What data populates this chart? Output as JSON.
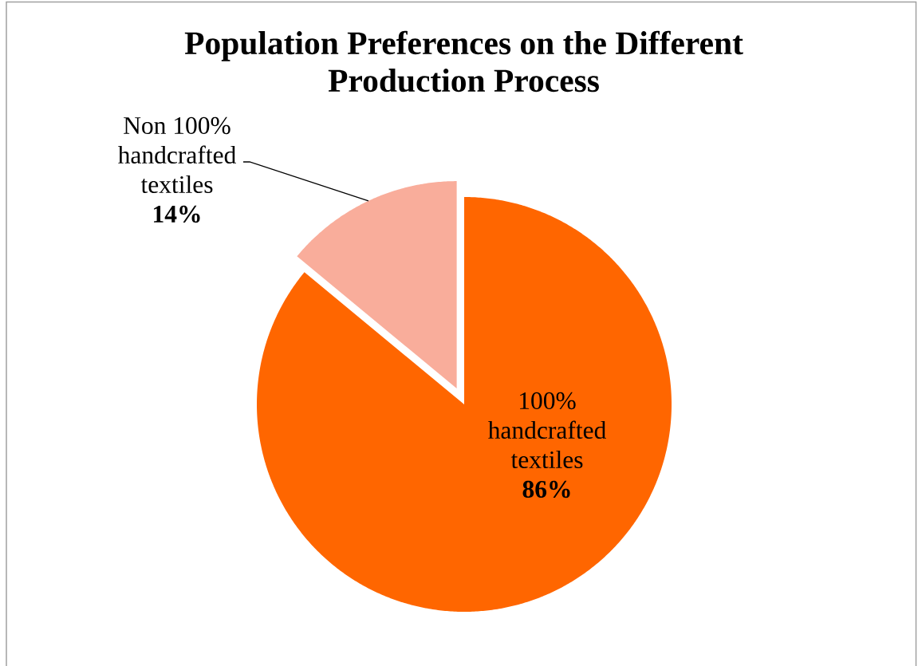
{
  "chart_data": {
    "type": "pie",
    "title": "Population Preferences on the Different Production Process",
    "categories": [
      "100% handcrafted textiles",
      "Non 100% handcrafted textiles"
    ],
    "values": [
      86,
      14
    ],
    "colors": [
      "#ff6600",
      "#f9ad9b"
    ],
    "value_labels": [
      "86%",
      "14%"
    ]
  }
}
